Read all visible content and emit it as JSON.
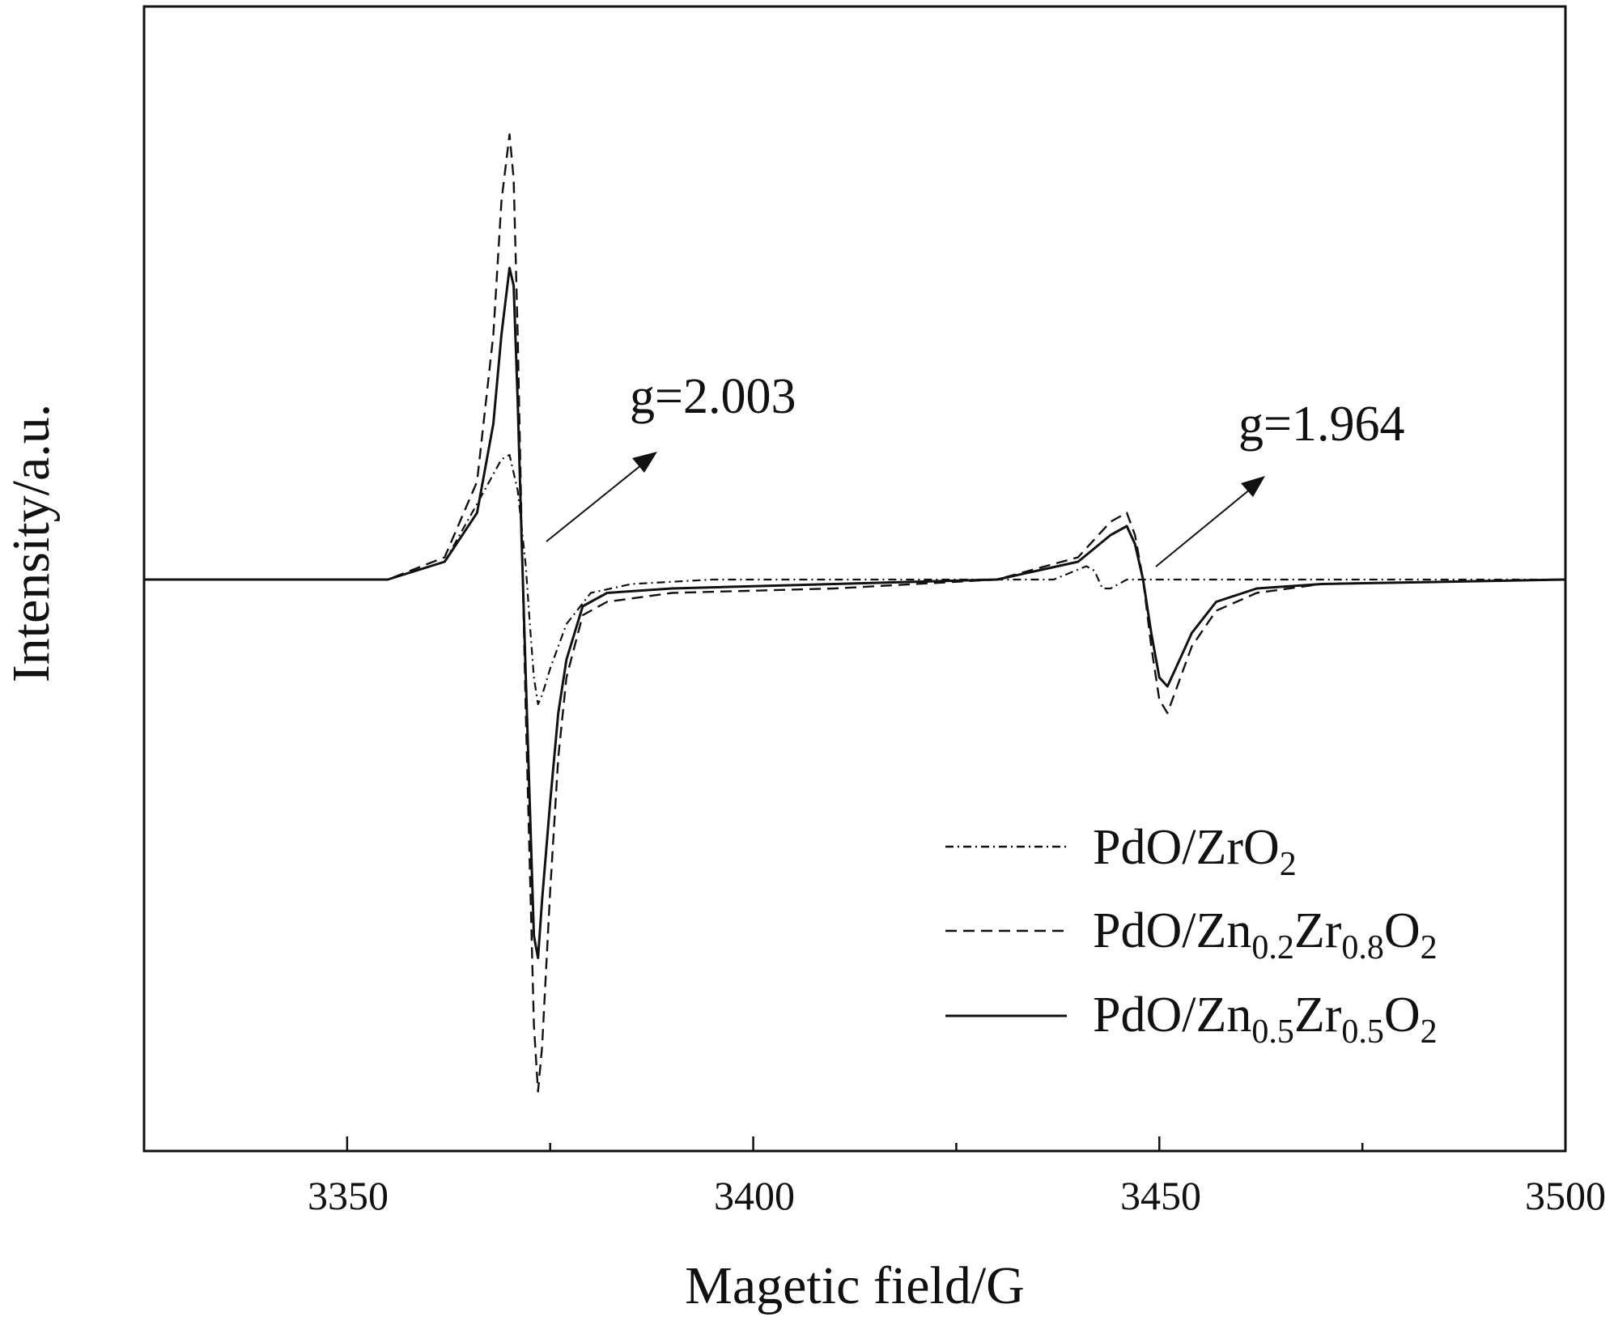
{
  "chart_data": {
    "type": "line",
    "title": "",
    "xlabel": "Magetic field/G",
    "ylabel": "Intensity/a.u.",
    "xlim": [
      3325,
      3500
    ],
    "ylim": [
      -1.15,
      1.0
    ],
    "x_ticks": [
      "3350",
      "3400",
      "3450",
      "3500"
    ],
    "y_ticks": [],
    "grid": false,
    "legend_position": "bottom-right",
    "legend": [
      {
        "pre": "PdO/ZrO",
        "sub1": "2",
        "mid1": "",
        "sub2": "",
        "mid2": "",
        "sub3": ""
      },
      {
        "pre": "PdO/Zn",
        "sub1": "0.2",
        "mid1": "Zr",
        "sub2": "0.8",
        "mid2": "O",
        "sub3": "2"
      },
      {
        "pre": "PdO/Zn",
        "sub1": "0.5",
        "mid1": "Zr",
        "sub2": "0.5",
        "mid2": "O",
        "sub3": "2"
      }
    ],
    "annotations": [
      {
        "text": "g=2.003",
        "field_G": 3372
      },
      {
        "text": "g=1.964",
        "field_G": 3449
      }
    ],
    "series": [
      {
        "name": "PdO/ZrO2",
        "style": "dash-dot",
        "x": [
          3325,
          3340,
          3355,
          3362,
          3366,
          3369,
          3370,
          3371,
          3372,
          3372.5,
          3373,
          3373.5,
          3374,
          3375,
          3377,
          3380,
          3385,
          3395,
          3420,
          3437,
          3441,
          3442,
          3443,
          3444,
          3446,
          3460,
          3480,
          3500
        ],
        "y": [
          0.0,
          0.0,
          0.0,
          0.04,
          0.17,
          0.27,
          0.28,
          0.2,
          0.03,
          -0.1,
          -0.22,
          -0.28,
          -0.26,
          -0.2,
          -0.1,
          -0.03,
          -0.01,
          0.0,
          0.0,
          0.0,
          0.03,
          0.02,
          -0.02,
          -0.02,
          0.0,
          0.0,
          0.0,
          0.0
        ]
      },
      {
        "name": "PdO/Zn0.2Zr0.8O2",
        "style": "dashed",
        "x": [
          3325,
          3340,
          3355,
          3362,
          3366,
          3368,
          3369,
          3370,
          3370.5,
          3371,
          3371.5,
          3372,
          3373,
          3373.5,
          3374,
          3375,
          3376,
          3377,
          3379,
          3382,
          3390,
          3410,
          3430,
          3440,
          3444,
          3446,
          3447,
          3448,
          3449,
          3450,
          3451,
          3452,
          3454,
          3457,
          3462,
          3470,
          3500
        ],
        "y": [
          0.0,
          0.0,
          0.0,
          0.05,
          0.22,
          0.55,
          0.85,
          1.0,
          0.9,
          0.55,
          0.1,
          -0.3,
          -1.0,
          -1.15,
          -1.05,
          -0.7,
          -0.4,
          -0.22,
          -0.08,
          -0.05,
          -0.03,
          -0.02,
          0.0,
          0.05,
          0.13,
          0.15,
          0.1,
          0.0,
          -0.15,
          -0.27,
          -0.3,
          -0.25,
          -0.15,
          -0.07,
          -0.03,
          -0.01,
          0.0
        ]
      },
      {
        "name": "PdO/Zn0.5Zr0.5O2",
        "style": "solid",
        "x": [
          3325,
          3340,
          3355,
          3362,
          3366,
          3368,
          3369,
          3370,
          3370.5,
          3371,
          3371.5,
          3372,
          3373,
          3373.5,
          3374,
          3375,
          3376,
          3377,
          3379,
          3382,
          3390,
          3410,
          3430,
          3440,
          3444,
          3446,
          3447,
          3448,
          3449,
          3450,
          3451,
          3452,
          3454,
          3457,
          3462,
          3470,
          3500
        ],
        "y": [
          0.0,
          0.0,
          0.0,
          0.04,
          0.15,
          0.35,
          0.55,
          0.7,
          0.66,
          0.4,
          0.08,
          -0.22,
          -0.8,
          -0.85,
          -0.72,
          -0.5,
          -0.3,
          -0.18,
          -0.06,
          -0.03,
          -0.02,
          -0.01,
          0.0,
          0.04,
          0.1,
          0.12,
          0.08,
          0.0,
          -0.12,
          -0.22,
          -0.24,
          -0.2,
          -0.12,
          -0.05,
          -0.02,
          -0.01,
          0.0
        ]
      }
    ]
  }
}
